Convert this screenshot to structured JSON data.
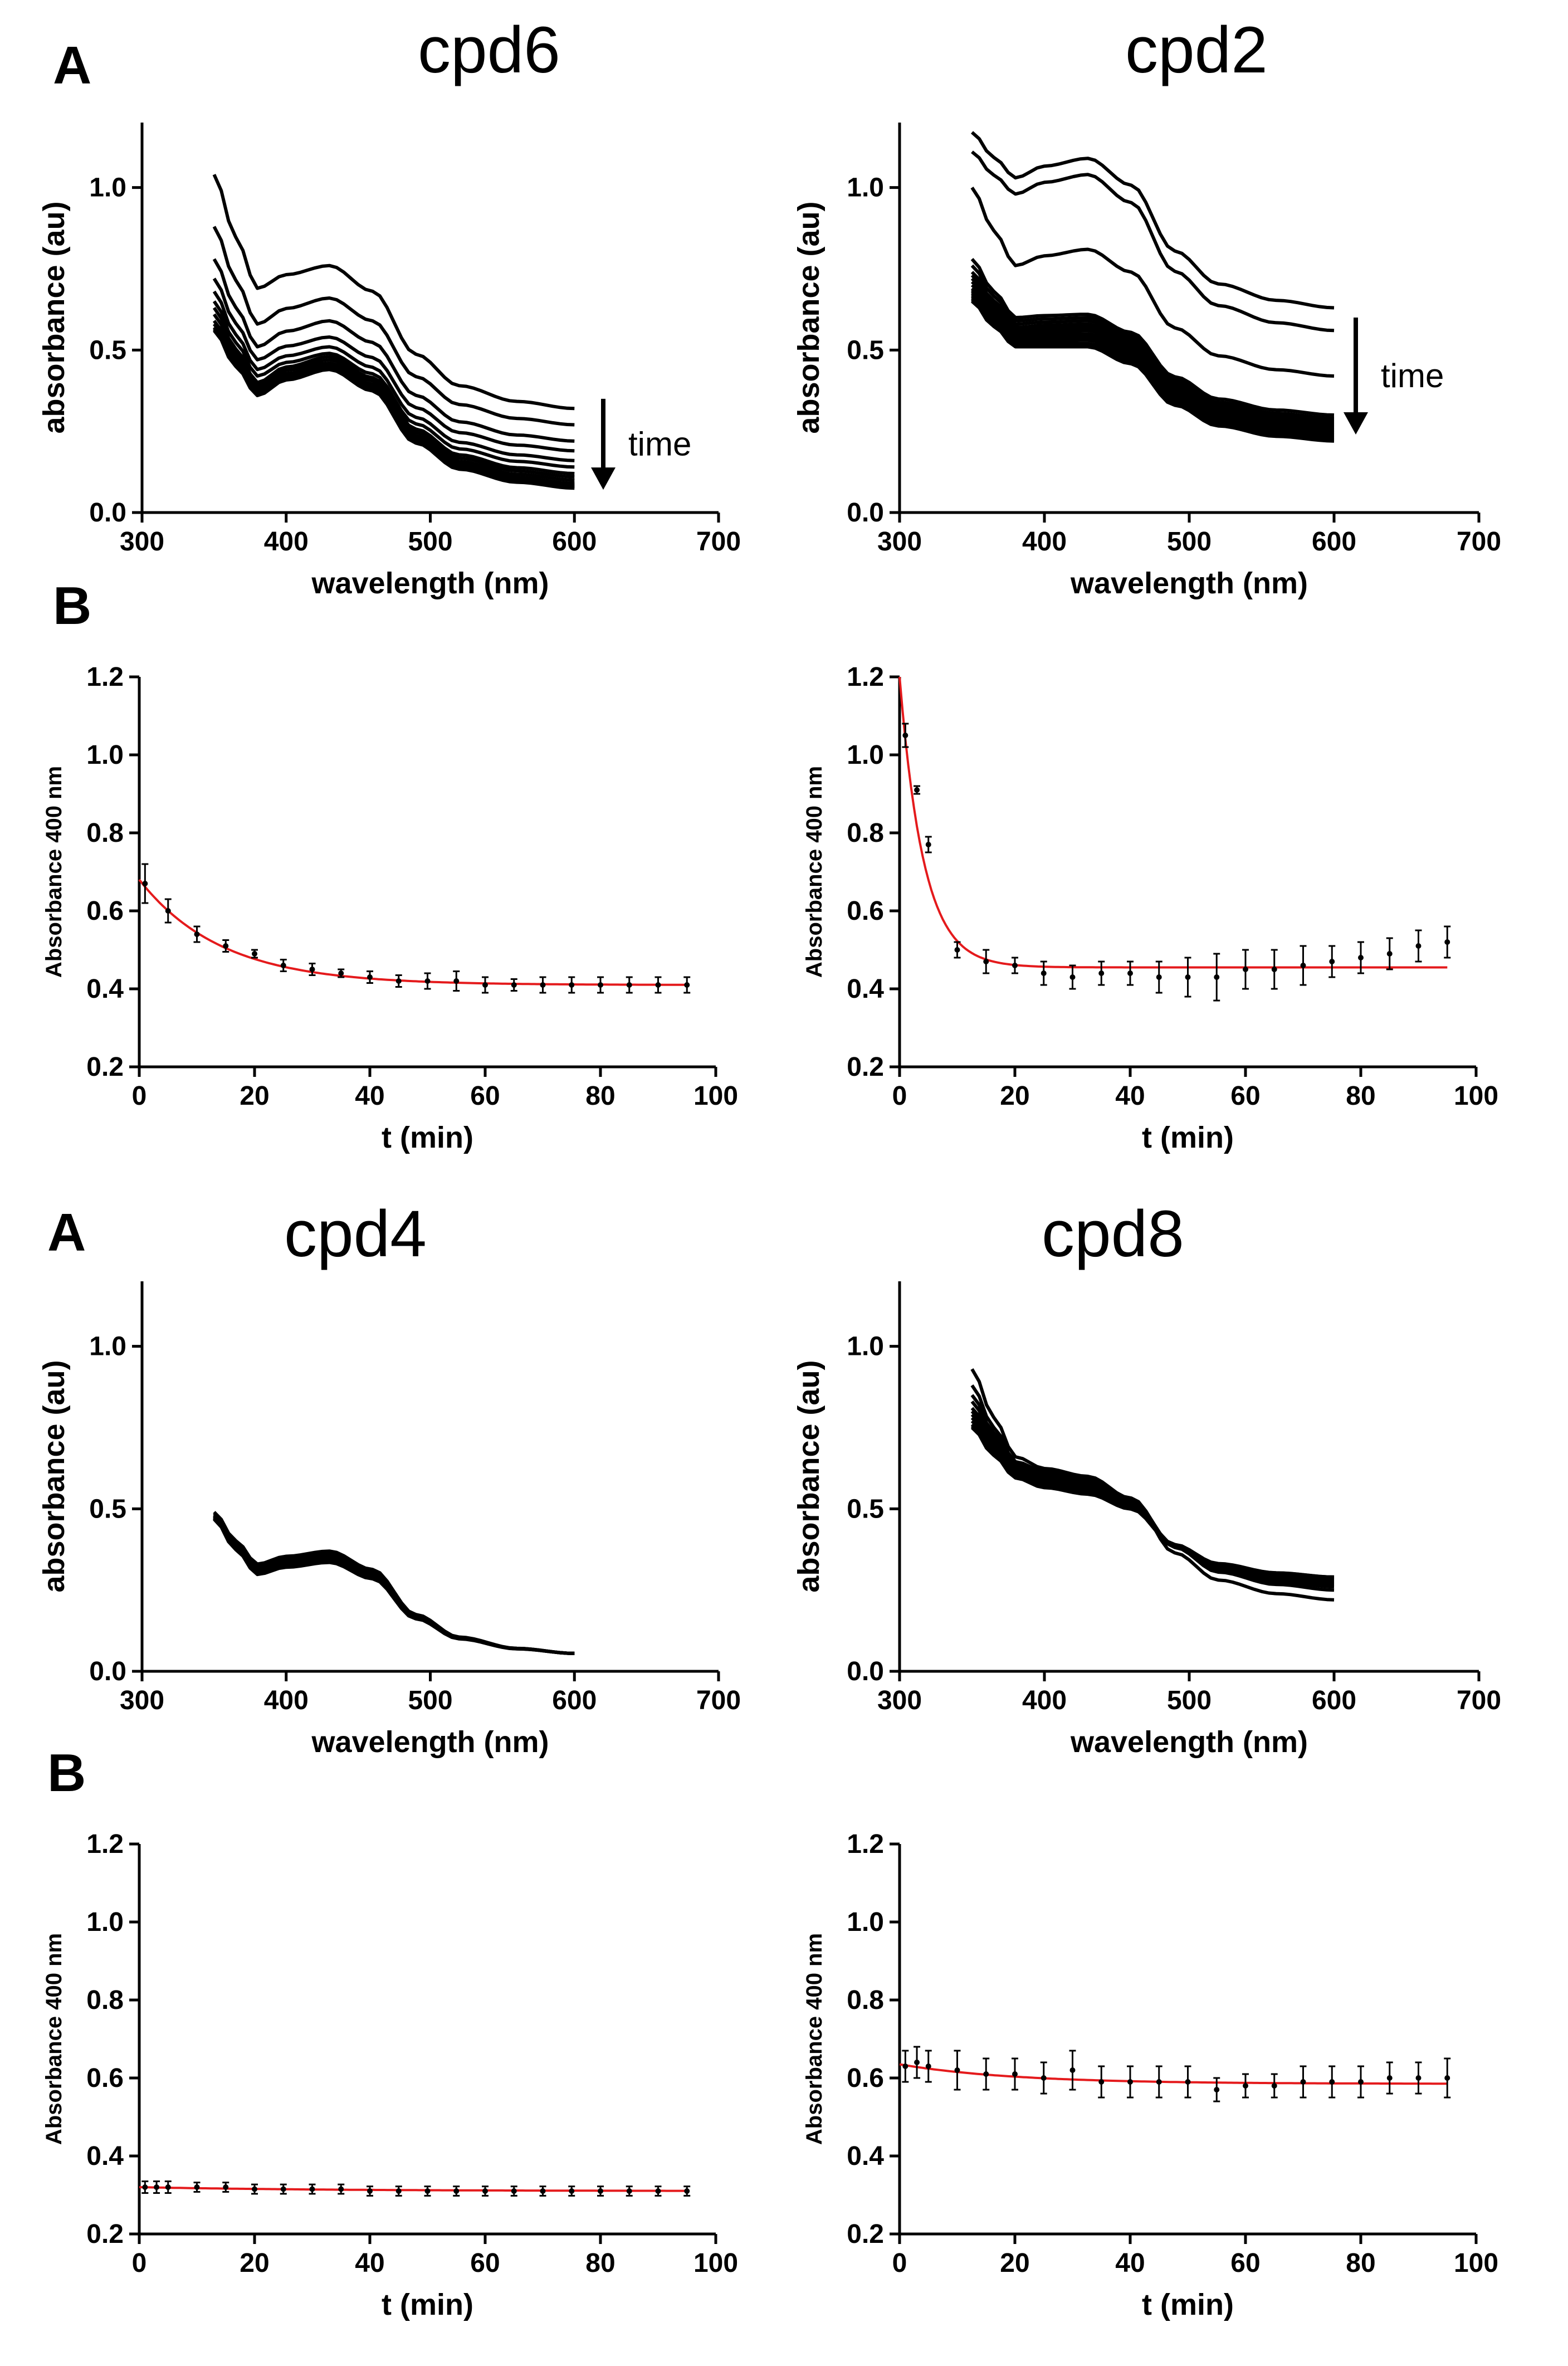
{
  "panel_letters": {
    "top_a": "A",
    "top_b": "B",
    "bottom_a": "A",
    "bottom_b": "B"
  },
  "arrow_label": "time",
  "chart_data": [
    {
      "id": "spec_cpd6",
      "type": "line",
      "title": "cpd6",
      "xlabel": "wavelength (nm)",
      "ylabel": "absorbance (au)",
      "xlim": [
        300,
        700
      ],
      "ylim": [
        0,
        1.2
      ],
      "xticks": [
        300,
        400,
        500,
        600,
        700
      ],
      "xtick_labels": [
        "300",
        "400",
        "500",
        "600",
        "700"
      ],
      "yticks": [
        0,
        0.5,
        1.0
      ],
      "ytick_labels": [
        "0.0",
        "0.5",
        "1.0"
      ],
      "x_range": [
        350,
        600
      ],
      "series": [
        {
          "name": "t0",
          "a350": 1.04,
          "peak": 0.76,
          "a380": 0.69,
          "a600": 0.32
        },
        {
          "name": "t1",
          "a350": 0.88,
          "peak": 0.66,
          "a380": 0.58,
          "a600": 0.27
        },
        {
          "name": "t2",
          "a350": 0.78,
          "peak": 0.59,
          "a380": 0.51,
          "a600": 0.22
        },
        {
          "name": "t3",
          "a350": 0.72,
          "peak": 0.54,
          "a380": 0.47,
          "a600": 0.19
        },
        {
          "name": "t4",
          "a350": 0.68,
          "peak": 0.51,
          "a380": 0.44,
          "a600": 0.16
        },
        {
          "name": "t5",
          "a350": 0.65,
          "peak": 0.49,
          "a380": 0.42,
          "a600": 0.14
        },
        {
          "name": "t6",
          "a350": 0.63,
          "peak": 0.48,
          "a380": 0.4,
          "a600": 0.12
        },
        {
          "name": "t7",
          "a350": 0.61,
          "peak": 0.47,
          "a380": 0.39,
          "a600": 0.11
        },
        {
          "name": "t8",
          "a350": 0.59,
          "peak": 0.46,
          "a380": 0.38,
          "a600": 0.1
        },
        {
          "name": "t9",
          "a350": 0.58,
          "peak": 0.455,
          "a380": 0.375,
          "a600": 0.09
        },
        {
          "name": "t10",
          "a350": 0.57,
          "peak": 0.45,
          "a380": 0.37,
          "a600": 0.085
        },
        {
          "name": "t11",
          "a350": 0.565,
          "peak": 0.445,
          "a380": 0.365,
          "a600": 0.08
        },
        {
          "name": "t12",
          "a350": 0.56,
          "peak": 0.44,
          "a380": 0.36,
          "a600": 0.075
        }
      ],
      "annotation": {
        "text": "time",
        "direction": "down",
        "x_from": 620,
        "x_to": 620,
        "y_from": 0.35,
        "y_to": 0.07
      }
    },
    {
      "id": "spec_cpd2",
      "type": "line",
      "title": "cpd2",
      "xlabel": "wavelength (nm)",
      "ylabel": "absorbance (au)",
      "xlim": [
        300,
        700
      ],
      "ylim": [
        0,
        1.2
      ],
      "xticks": [
        300,
        400,
        500,
        600,
        700
      ],
      "xtick_labels": [
        "300",
        "400",
        "500",
        "600",
        "700"
      ],
      "yticks": [
        0,
        0.5,
        1.0
      ],
      "ytick_labels": [
        "0.0",
        "0.5",
        "1.0"
      ],
      "x_range": [
        350,
        600
      ],
      "series": [
        {
          "name": "t0",
          "a350": 1.17,
          "peak": 1.09,
          "a380": 1.03,
          "a600": 0.63
        },
        {
          "name": "t1",
          "a350": 1.11,
          "peak": 1.04,
          "a380": 0.98,
          "a600": 0.56
        },
        {
          "name": "t2",
          "a350": 1.0,
          "peak": 0.81,
          "a380": 0.76,
          "a600": 0.42
        },
        {
          "name": "t3",
          "a350": 0.78,
          "peak": 0.61,
          "a380": 0.6,
          "a600": 0.3
        },
        {
          "name": "t4",
          "a350": 0.76,
          "peak": 0.6,
          "a380": 0.59,
          "a600": 0.29
        },
        {
          "name": "t5",
          "a350": 0.74,
          "peak": 0.59,
          "a380": 0.58,
          "a600": 0.285
        },
        {
          "name": "t6",
          "a350": 0.73,
          "peak": 0.58,
          "a380": 0.57,
          "a600": 0.28
        },
        {
          "name": "t7",
          "a350": 0.72,
          "peak": 0.575,
          "a380": 0.565,
          "a600": 0.275
        },
        {
          "name": "t8",
          "a350": 0.71,
          "peak": 0.57,
          "a380": 0.56,
          "a600": 0.27
        },
        {
          "name": "t9",
          "a350": 0.7,
          "peak": 0.565,
          "a380": 0.555,
          "a600": 0.265
        },
        {
          "name": "t10",
          "a350": 0.69,
          "peak": 0.56,
          "a380": 0.55,
          "a600": 0.26
        },
        {
          "name": "t11",
          "a350": 0.685,
          "peak": 0.55,
          "a380": 0.545,
          "a600": 0.255
        },
        {
          "name": "t12",
          "a350": 0.68,
          "peak": 0.545,
          "a380": 0.54,
          "a600": 0.25
        },
        {
          "name": "t13",
          "a350": 0.675,
          "peak": 0.54,
          "a380": 0.535,
          "a600": 0.245
        },
        {
          "name": "t14",
          "a350": 0.67,
          "peak": 0.535,
          "a380": 0.53,
          "a600": 0.24
        },
        {
          "name": "t15",
          "a350": 0.665,
          "peak": 0.53,
          "a380": 0.525,
          "a600": 0.235
        },
        {
          "name": "t16",
          "a350": 0.66,
          "peak": 0.52,
          "a380": 0.52,
          "a600": 0.23
        },
        {
          "name": "t17",
          "a350": 0.655,
          "peak": 0.515,
          "a380": 0.515,
          "a600": 0.225
        },
        {
          "name": "t18",
          "a350": 0.65,
          "peak": 0.51,
          "a380": 0.51,
          "a600": 0.22
        }
      ],
      "annotation": {
        "text": "time",
        "direction": "down",
        "x_from": 615,
        "x_to": 615,
        "y_from": 0.6,
        "y_to": 0.24
      }
    },
    {
      "id": "kin_cpd6",
      "type": "scatter",
      "title": "",
      "xlabel": "t (min)",
      "ylabel": "Absorbance 400 nm",
      "xlim": [
        0,
        100
      ],
      "ylim": [
        0.2,
        1.2
      ],
      "xticks": [
        0,
        20,
        40,
        60,
        80,
        100
      ],
      "xtick_labels": [
        "0",
        "20",
        "40",
        "60",
        "80",
        "100"
      ],
      "yticks": [
        0.2,
        0.4,
        0.6,
        0.8,
        1.0,
        1.2
      ],
      "ytick_labels": [
        "0.2",
        "0.4",
        "0.6",
        "0.8",
        "1.0",
        "1.2"
      ],
      "x": [
        1,
        5,
        10,
        15,
        20,
        25,
        30,
        35,
        40,
        45,
        50,
        55,
        60,
        65,
        70,
        75,
        80,
        85,
        90,
        95
      ],
      "y": [
        0.67,
        0.6,
        0.54,
        0.51,
        0.49,
        0.46,
        0.45,
        0.44,
        0.43,
        0.42,
        0.42,
        0.42,
        0.41,
        0.41,
        0.41,
        0.41,
        0.41,
        0.41,
        0.41,
        0.41
      ],
      "err": [
        0.05,
        0.03,
        0.02,
        0.015,
        0.01,
        0.015,
        0.015,
        0.01,
        0.015,
        0.015,
        0.02,
        0.025,
        0.02,
        0.015,
        0.02,
        0.02,
        0.02,
        0.02,
        0.02,
        0.02
      ],
      "fit": {
        "model": "exponential decay",
        "y0": 0.68,
        "plateau": 0.41,
        "k": 0.07,
        "x_range": [
          0,
          95
        ],
        "color": "#e41a1c"
      }
    },
    {
      "id": "kin_cpd2",
      "type": "scatter",
      "title": "",
      "xlabel": "t (min)",
      "ylabel": "Absorbance 400 nm",
      "xlim": [
        0,
        100
      ],
      "ylim": [
        0.2,
        1.2
      ],
      "xticks": [
        0,
        20,
        40,
        60,
        80,
        100
      ],
      "xtick_labels": [
        "0",
        "20",
        "40",
        "60",
        "80",
        "100"
      ],
      "yticks": [
        0.2,
        0.4,
        0.6,
        0.8,
        1.0,
        1.2
      ],
      "ytick_labels": [
        "0.2",
        "0.4",
        "0.6",
        "0.8",
        "1.0",
        "1.2"
      ],
      "x": [
        1,
        3,
        5,
        10,
        15,
        20,
        25,
        30,
        35,
        40,
        45,
        50,
        55,
        60,
        65,
        70,
        75,
        80,
        85,
        90,
        95
      ],
      "y": [
        1.05,
        0.91,
        0.77,
        0.5,
        0.47,
        0.46,
        0.44,
        0.43,
        0.44,
        0.44,
        0.43,
        0.43,
        0.43,
        0.45,
        0.45,
        0.46,
        0.47,
        0.48,
        0.49,
        0.51,
        0.52
      ],
      "err": [
        0.03,
        0.01,
        0.02,
        0.02,
        0.03,
        0.02,
        0.03,
        0.03,
        0.03,
        0.03,
        0.04,
        0.05,
        0.06,
        0.05,
        0.05,
        0.05,
        0.04,
        0.04,
        0.04,
        0.04,
        0.04
      ],
      "fit": {
        "model": "exponential decay",
        "y0": 1.2,
        "plateau": 0.455,
        "k": 0.24,
        "x_range": [
          0,
          95
        ],
        "color": "#e41a1c"
      }
    },
    {
      "id": "spec_cpd4",
      "type": "line",
      "title": "cpd4",
      "xlabel": "wavelength (nm)",
      "ylabel": "absorbance (au)",
      "xlim": [
        300,
        700
      ],
      "ylim": [
        0,
        1.2
      ],
      "xticks": [
        300,
        400,
        500,
        600,
        700
      ],
      "xtick_labels": [
        "300",
        "400",
        "500",
        "600",
        "700"
      ],
      "yticks": [
        0,
        0.5,
        1.0
      ],
      "ytick_labels": [
        "0.0",
        "0.5",
        "1.0"
      ],
      "x_range": [
        350,
        600
      ],
      "series": [
        {
          "name": "t0",
          "a350": 0.49,
          "peak": 0.37,
          "a380": 0.33,
          "a600": 0.055
        },
        {
          "name": "t1",
          "a350": 0.485,
          "peak": 0.365,
          "a380": 0.325,
          "a600": 0.055
        },
        {
          "name": "t2",
          "a350": 0.48,
          "peak": 0.36,
          "a380": 0.32,
          "a600": 0.055
        },
        {
          "name": "t3",
          "a350": 0.478,
          "peak": 0.355,
          "a380": 0.315,
          "a600": 0.055
        },
        {
          "name": "t4",
          "a350": 0.475,
          "peak": 0.35,
          "a380": 0.31,
          "a600": 0.055
        },
        {
          "name": "t5",
          "a350": 0.472,
          "peak": 0.345,
          "a380": 0.305,
          "a600": 0.055
        },
        {
          "name": "t6",
          "a350": 0.47,
          "peak": 0.34,
          "a380": 0.3,
          "a600": 0.055
        },
        {
          "name": "t7",
          "a350": 0.468,
          "peak": 0.335,
          "a380": 0.298,
          "a600": 0.055
        }
      ]
    },
    {
      "id": "spec_cpd8",
      "type": "line",
      "title": "cpd8",
      "xlabel": "wavelength (nm)",
      "ylabel": "absorbance (au)",
      "xlim": [
        300,
        700
      ],
      "ylim": [
        0,
        1.2
      ],
      "xticks": [
        300,
        400,
        500,
        600,
        700
      ],
      "xtick_labels": [
        "300",
        "400",
        "500",
        "600",
        "700"
      ],
      "yticks": [
        0,
        0.5,
        1.0
      ],
      "ytick_labels": [
        "0.0",
        "0.5",
        "1.0"
      ],
      "x_range": [
        350,
        600
      ],
      "series": [
        {
          "name": "t0",
          "a350": 0.93,
          "peak": 0.6,
          "a380": 0.66,
          "a600": 0.22
        },
        {
          "name": "t1",
          "a350": 0.88,
          "peak": 0.595,
          "a380": 0.645,
          "a600": 0.25
        },
        {
          "name": "t2",
          "a350": 0.85,
          "peak": 0.59,
          "a380": 0.64,
          "a600": 0.26
        },
        {
          "name": "t3",
          "a350": 0.83,
          "peak": 0.585,
          "a380": 0.635,
          "a600": 0.265
        },
        {
          "name": "t4",
          "a350": 0.81,
          "peak": 0.58,
          "a380": 0.63,
          "a600": 0.27
        },
        {
          "name": "t5",
          "a350": 0.8,
          "peak": 0.575,
          "a380": 0.625,
          "a600": 0.275
        },
        {
          "name": "t6",
          "a350": 0.79,
          "peak": 0.57,
          "a380": 0.62,
          "a600": 0.28
        },
        {
          "name": "t7",
          "a350": 0.78,
          "peak": 0.565,
          "a380": 0.615,
          "a600": 0.282
        },
        {
          "name": "t8",
          "a350": 0.77,
          "peak": 0.56,
          "a380": 0.61,
          "a600": 0.285
        },
        {
          "name": "t9",
          "a350": 0.76,
          "peak": 0.555,
          "a380": 0.605,
          "a600": 0.287
        },
        {
          "name": "t10",
          "a350": 0.755,
          "peak": 0.55,
          "a380": 0.6,
          "a600": 0.29
        },
        {
          "name": "t11",
          "a350": 0.75,
          "peak": 0.545,
          "a380": 0.595,
          "a600": 0.29
        }
      ]
    },
    {
      "id": "kin_cpd4",
      "type": "scatter",
      "title": "",
      "xlabel": "t (min)",
      "ylabel": "Absorbance 400 nm",
      "xlim": [
        0,
        100
      ],
      "ylim": [
        0.2,
        1.2
      ],
      "xticks": [
        0,
        20,
        40,
        60,
        80,
        100
      ],
      "xtick_labels": [
        "0",
        "20",
        "40",
        "60",
        "80",
        "100"
      ],
      "yticks": [
        0.2,
        0.4,
        0.6,
        0.8,
        1.0,
        1.2
      ],
      "ytick_labels": [
        "0.2",
        "0.4",
        "0.6",
        "0.8",
        "1.0",
        "1.2"
      ],
      "x": [
        1,
        3,
        5,
        10,
        15,
        20,
        25,
        30,
        35,
        40,
        45,
        50,
        55,
        60,
        65,
        70,
        75,
        80,
        85,
        90,
        95
      ],
      "y": [
        0.32,
        0.32,
        0.32,
        0.32,
        0.32,
        0.315,
        0.315,
        0.315,
        0.315,
        0.31,
        0.31,
        0.31,
        0.31,
        0.31,
        0.31,
        0.31,
        0.31,
        0.31,
        0.31,
        0.31,
        0.31
      ],
      "err": [
        0.015,
        0.015,
        0.015,
        0.012,
        0.012,
        0.012,
        0.012,
        0.012,
        0.012,
        0.012,
        0.012,
        0.012,
        0.012,
        0.012,
        0.012,
        0.012,
        0.012,
        0.012,
        0.012,
        0.012,
        0.012
      ],
      "fit": {
        "model": "exponential decay",
        "y0": 0.32,
        "plateau": 0.31,
        "k": 0.03,
        "x_range": [
          0,
          95
        ],
        "color": "#e41a1c"
      }
    },
    {
      "id": "kin_cpd8",
      "type": "scatter",
      "title": "",
      "xlabel": "t (min)",
      "ylabel": "Absorbance 400 nm",
      "xlim": [
        0,
        100
      ],
      "ylim": [
        0.2,
        1.2
      ],
      "xticks": [
        0,
        20,
        40,
        60,
        80,
        100
      ],
      "xtick_labels": [
        "0",
        "20",
        "40",
        "60",
        "80",
        "100"
      ],
      "yticks": [
        0.2,
        0.4,
        0.6,
        0.8,
        1.0,
        1.2
      ],
      "ytick_labels": [
        "0.2",
        "0.4",
        "0.6",
        "0.8",
        "1.0",
        "1.2"
      ],
      "x": [
        1,
        3,
        5,
        10,
        15,
        20,
        25,
        30,
        35,
        40,
        45,
        50,
        55,
        60,
        65,
        70,
        75,
        80,
        85,
        90,
        95
      ],
      "y": [
        0.63,
        0.64,
        0.63,
        0.62,
        0.61,
        0.61,
        0.6,
        0.62,
        0.59,
        0.59,
        0.59,
        0.59,
        0.57,
        0.58,
        0.58,
        0.59,
        0.59,
        0.59,
        0.6,
        0.6,
        0.6
      ],
      "err": [
        0.04,
        0.04,
        0.04,
        0.05,
        0.04,
        0.04,
        0.04,
        0.05,
        0.04,
        0.04,
        0.04,
        0.04,
        0.03,
        0.03,
        0.03,
        0.04,
        0.04,
        0.04,
        0.04,
        0.04,
        0.05
      ],
      "fit": {
        "model": "exponential decay",
        "y0": 0.635,
        "plateau": 0.585,
        "k": 0.05,
        "x_range": [
          0,
          95
        ],
        "color": "#e41a1c"
      }
    }
  ]
}
